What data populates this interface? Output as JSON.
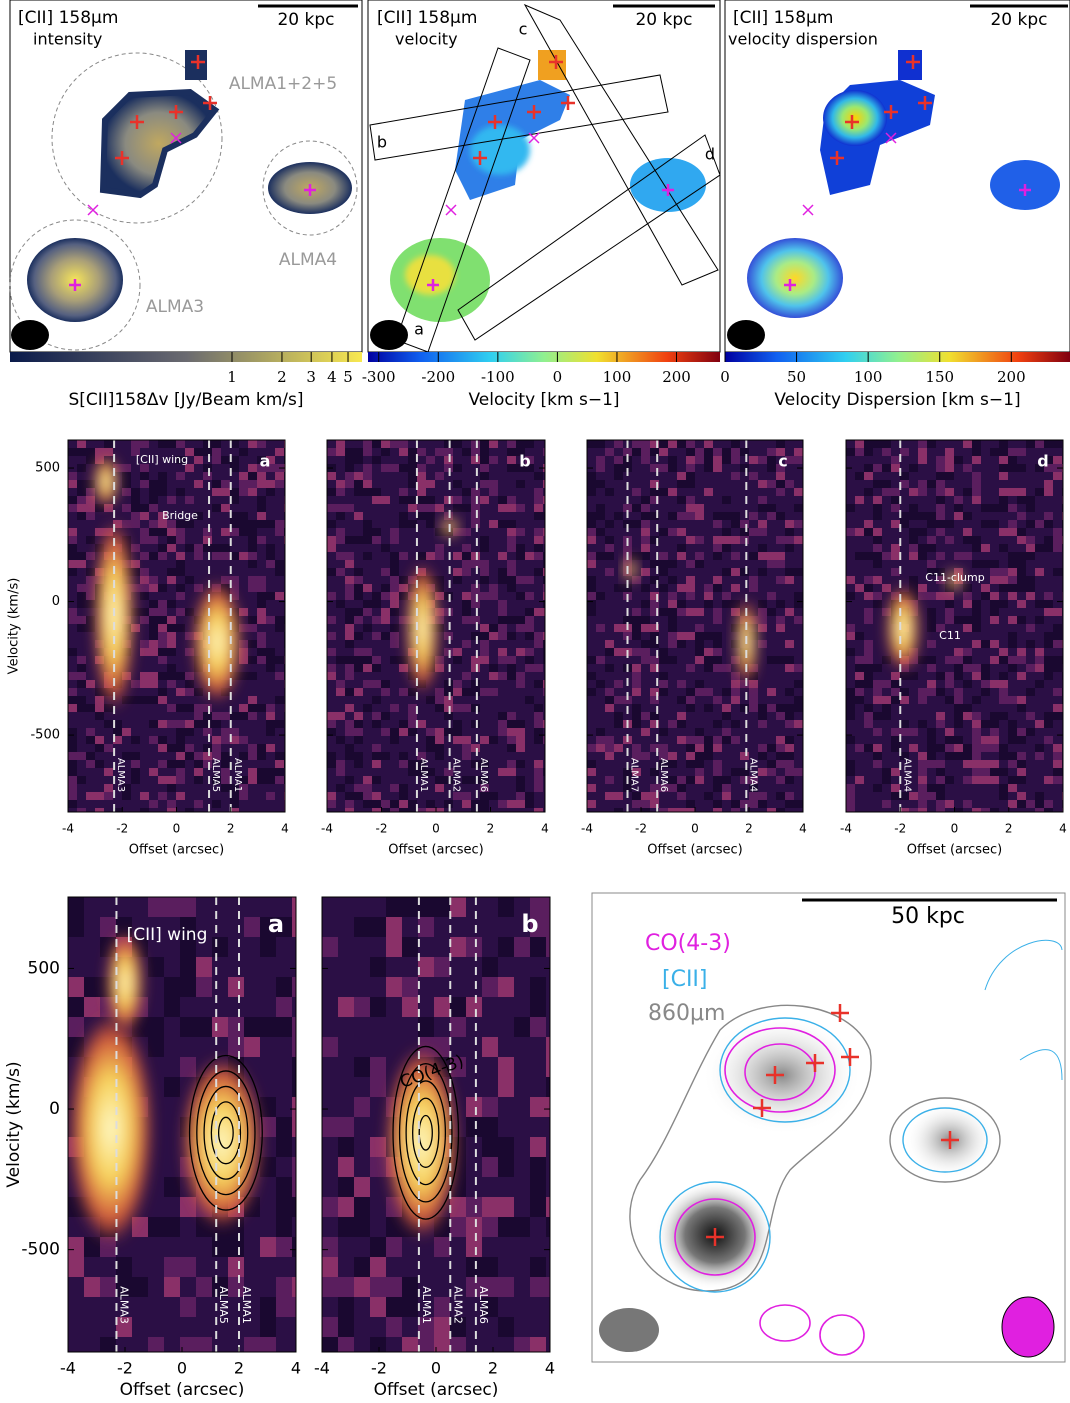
{
  "top_maps": [
    {
      "title": "[CII] 158μm",
      "quantity": "intensity",
      "scale_bar": "20 kpc",
      "labels": [
        "ALMA1+2+5",
        "ALMA4",
        "ALMA3"
      ],
      "colorbar": {
        "label": "S[CII]158Δv [Jy/Beam km/s]",
        "ticks": [
          1,
          2,
          3,
          4,
          5
        ],
        "range": [
          0.046,
          6.07
        ],
        "log": true
      }
    },
    {
      "title": "[CII] 158μm",
      "quantity": "velocity",
      "scale_bar": "20 kpc",
      "slits": [
        "a",
        "b",
        "c",
        "d"
      ],
      "colorbar": {
        "label": "Velocity [km s−1]",
        "ticks": [
          -300,
          -200,
          -100,
          0,
          100,
          200
        ],
        "range": [
          -318,
          273
        ],
        "log": false
      }
    },
    {
      "title": "[CII] 158μm",
      "quantity": "velocity dispersion",
      "scale_bar": "20 kpc",
      "colorbar": {
        "label": "Velocity Dispersion [km s−1]",
        "ticks": [
          0,
          50,
          100,
          150,
          200
        ],
        "range": [
          0,
          241
        ],
        "log": false
      }
    }
  ],
  "pv_rows": [
    {
      "ylabel": "Velocity (km/s)",
      "xlabel": "Offset (arcsec)",
      "yticks": [
        500,
        0,
        -500
      ],
      "ylim": [
        -788,
        605
      ],
      "xticks": [
        -4,
        -2,
        0,
        2,
        4
      ],
      "xlim": [
        -4,
        4
      ],
      "panels": [
        {
          "letter": "a",
          "sources": [
            {
              "name": "ALMA3",
              "offset": -2.3
            },
            {
              "name": "ALMA5",
              "offset": 1.2
            },
            {
              "name": "ALMA1",
              "offset": 2.0
            }
          ],
          "notes": [
            "[CII] wing",
            "Bridge"
          ]
        },
        {
          "letter": "b",
          "sources": [
            {
              "name": "ALMA1",
              "offset": -0.7
            },
            {
              "name": "ALMA2",
              "offset": 0.5
            },
            {
              "name": "ALMA6",
              "offset": 1.5
            }
          ],
          "notes": []
        },
        {
          "letter": "c",
          "sources": [
            {
              "name": "ALMA7",
              "offset": -2.5
            },
            {
              "name": "ALMA6",
              "offset": -1.4
            },
            {
              "name": "ALMA4",
              "offset": 1.9
            }
          ],
          "notes": []
        },
        {
          "letter": "d",
          "sources": [
            {
              "name": "ALMA4",
              "offset": -2.0
            }
          ],
          "notes": [
            "C11-clump",
            "C11"
          ]
        }
      ]
    },
    {
      "ylabel": "Velocity (km/s)",
      "xlabel": "Offset (arcsec)",
      "yticks": [
        500,
        0,
        -500
      ],
      "ylim": [
        -864,
        754
      ],
      "xticks": [
        -4,
        -2,
        0,
        2,
        4
      ],
      "xlim": [
        -4,
        4
      ],
      "panels": [
        {
          "letter": "a",
          "sources": [
            {
              "name": "ALMA3",
              "offset": -2.3
            },
            {
              "name": "ALMA5",
              "offset": 1.2
            },
            {
              "name": "ALMA1",
              "offset": 2.0
            }
          ],
          "notes": [
            "[CII] wing"
          ]
        },
        {
          "letter": "b",
          "sources": [
            {
              "name": "ALMA1",
              "offset": -0.6
            },
            {
              "name": "ALMA2",
              "offset": 0.5
            },
            {
              "name": "ALMA6",
              "offset": 1.4
            }
          ],
          "notes": [
            "CO(4-3)"
          ]
        }
      ]
    }
  ],
  "overlay_map": {
    "legend": [
      "CO(4-3)",
      "[CII]",
      "860μm"
    ],
    "scale_bar": "50 kpc"
  }
}
